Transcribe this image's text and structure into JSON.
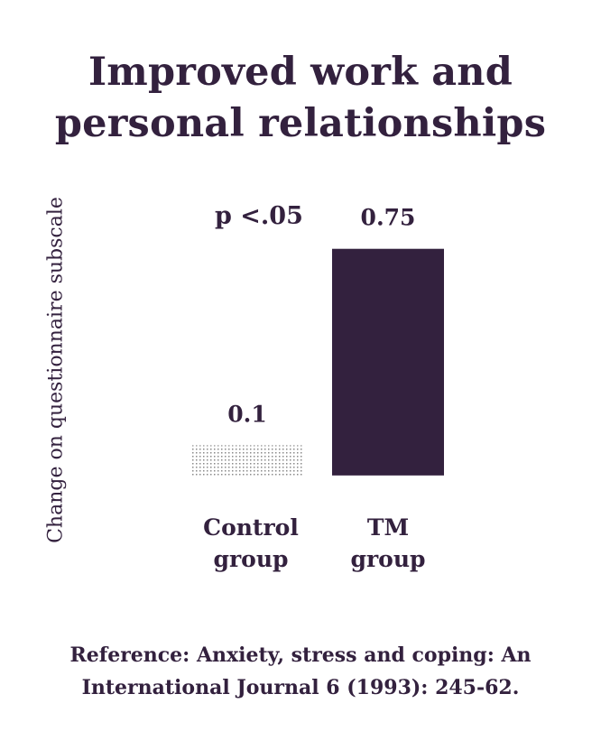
{
  "chart_data": {
    "type": "bar",
    "title": "Improved work and personal relationships",
    "ylabel": "Change on questionnaire subscale",
    "categories": [
      "Control\ngroup",
      "TM\ngroup"
    ],
    "values": [
      0.1,
      0.75
    ],
    "data_labels": [
      "0.1",
      "0.75"
    ],
    "annotation": "p <.05",
    "bar_styles": [
      "dotted-grey",
      "solid"
    ],
    "colors": {
      "bar": "#33213e",
      "dots": "#8a8a8a",
      "text": "#33213e"
    },
    "ylim": [
      -0.55,
      1.0
    ],
    "grid": false,
    "legend": "none"
  },
  "reference": "Reference: Anxiety, stress and coping: An International Journal 6 (1993): 245-62."
}
